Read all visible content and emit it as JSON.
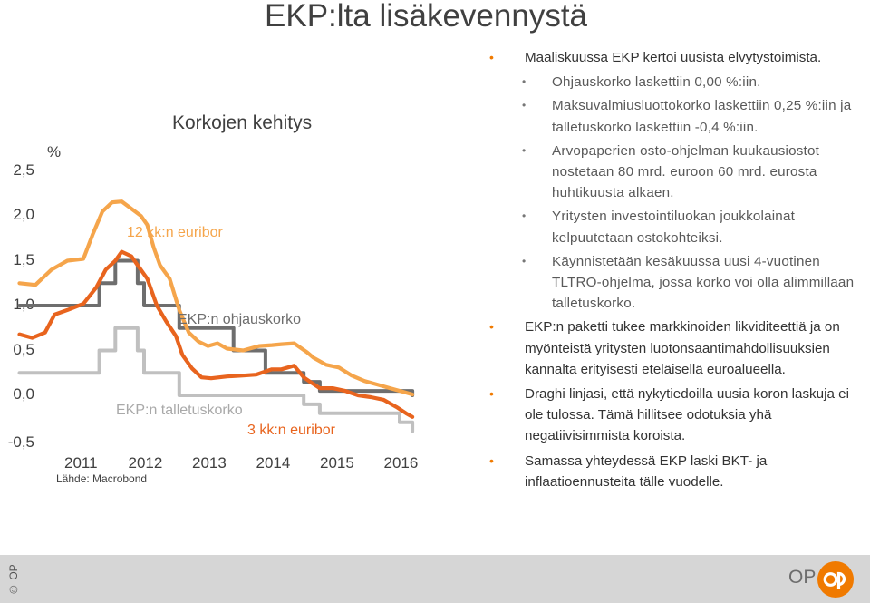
{
  "page": {
    "title": "EKP:lta lisäkevennystä"
  },
  "chart_data": {
    "type": "line",
    "title": "Korkojen kehitys",
    "ylabel": "%",
    "ylim": [
      -0.5,
      2.5
    ],
    "yticks": [
      "2,5",
      "2,0",
      "1,5",
      "1,0",
      "0,5",
      "0,0",
      "-0,5"
    ],
    "xticks": [
      "2011",
      "2012",
      "2013",
      "2014",
      "2015",
      "2016"
    ],
    "source": "Lähde: Macrobond",
    "series": [
      {
        "name": "12 kk:n euribor",
        "color": "#F5A54B",
        "points": [
          [
            2010.0,
            1.25
          ],
          [
            2010.25,
            1.23
          ],
          [
            2010.5,
            1.4
          ],
          [
            2010.75,
            1.5
          ],
          [
            2011.0,
            1.52
          ],
          [
            2011.15,
            1.8
          ],
          [
            2011.3,
            2.05
          ],
          [
            2011.45,
            2.15
          ],
          [
            2011.6,
            2.16
          ],
          [
            2011.75,
            2.08
          ],
          [
            2011.9,
            2.0
          ],
          [
            2012.0,
            1.9
          ],
          [
            2012.1,
            1.65
          ],
          [
            2012.2,
            1.45
          ],
          [
            2012.35,
            1.3
          ],
          [
            2012.5,
            0.95
          ],
          [
            2012.65,
            0.7
          ],
          [
            2012.8,
            0.6
          ],
          [
            2012.95,
            0.55
          ],
          [
            2013.1,
            0.58
          ],
          [
            2013.25,
            0.52
          ],
          [
            2013.5,
            0.5
          ],
          [
            2013.75,
            0.55
          ],
          [
            2013.95,
            0.56
          ],
          [
            2014.1,
            0.57
          ],
          [
            2014.3,
            0.58
          ],
          [
            2014.5,
            0.48
          ],
          [
            2014.6,
            0.42
          ],
          [
            2014.8,
            0.34
          ],
          [
            2015.0,
            0.31
          ],
          [
            2015.2,
            0.22
          ],
          [
            2015.4,
            0.16
          ],
          [
            2015.6,
            0.12
          ],
          [
            2015.8,
            0.08
          ],
          [
            2016.0,
            0.04
          ],
          [
            2016.15,
            0.01
          ]
        ]
      },
      {
        "name": "3 kk:n euribor",
        "color": "#E8641E",
        "points": [
          [
            2010.0,
            0.68
          ],
          [
            2010.2,
            0.64
          ],
          [
            2010.4,
            0.7
          ],
          [
            2010.55,
            0.9
          ],
          [
            2010.75,
            0.95
          ],
          [
            2011.0,
            1.02
          ],
          [
            2011.2,
            1.2
          ],
          [
            2011.35,
            1.4
          ],
          [
            2011.5,
            1.5
          ],
          [
            2011.6,
            1.6
          ],
          [
            2011.75,
            1.55
          ],
          [
            2011.85,
            1.45
          ],
          [
            2012.0,
            1.3
          ],
          [
            2012.15,
            1.0
          ],
          [
            2012.3,
            0.82
          ],
          [
            2012.45,
            0.66
          ],
          [
            2012.55,
            0.45
          ],
          [
            2012.7,
            0.3
          ],
          [
            2012.85,
            0.2
          ],
          [
            2013.0,
            0.19
          ],
          [
            2013.25,
            0.21
          ],
          [
            2013.5,
            0.22
          ],
          [
            2013.7,
            0.23
          ],
          [
            2013.95,
            0.29
          ],
          [
            2014.1,
            0.29
          ],
          [
            2014.3,
            0.33
          ],
          [
            2014.45,
            0.2
          ],
          [
            2014.55,
            0.15
          ],
          [
            2014.7,
            0.08
          ],
          [
            2014.9,
            0.08
          ],
          [
            2015.1,
            0.05
          ],
          [
            2015.3,
            0.0
          ],
          [
            2015.5,
            -0.02
          ],
          [
            2015.7,
            -0.05
          ],
          [
            2015.9,
            -0.13
          ],
          [
            2016.05,
            -0.2
          ],
          [
            2016.15,
            -0.24
          ]
        ]
      },
      {
        "name": "EKP:n ohjauskorko",
        "color": "#6e6e6e",
        "points": [
          [
            2010.0,
            1.0
          ],
          [
            2011.25,
            1.0
          ],
          [
            2011.25,
            1.25
          ],
          [
            2011.5,
            1.25
          ],
          [
            2011.5,
            1.5
          ],
          [
            2011.85,
            1.5
          ],
          [
            2011.85,
            1.25
          ],
          [
            2011.95,
            1.25
          ],
          [
            2011.95,
            1.0
          ],
          [
            2012.5,
            1.0
          ],
          [
            2012.5,
            0.75
          ],
          [
            2013.35,
            0.75
          ],
          [
            2013.35,
            0.5
          ],
          [
            2013.85,
            0.5
          ],
          [
            2013.85,
            0.25
          ],
          [
            2014.45,
            0.25
          ],
          [
            2014.45,
            0.15
          ],
          [
            2014.7,
            0.15
          ],
          [
            2014.7,
            0.05
          ],
          [
            2016.15,
            0.05
          ],
          [
            2016.15,
            0.0
          ]
        ]
      },
      {
        "name": "EKP:n talletuskorko",
        "color": "#c0c0c0",
        "points": [
          [
            2010.0,
            0.25
          ],
          [
            2011.25,
            0.25
          ],
          [
            2011.25,
            0.5
          ],
          [
            2011.5,
            0.5
          ],
          [
            2011.5,
            0.75
          ],
          [
            2011.85,
            0.75
          ],
          [
            2011.85,
            0.5
          ],
          [
            2011.95,
            0.5
          ],
          [
            2011.95,
            0.25
          ],
          [
            2012.5,
            0.25
          ],
          [
            2012.5,
            0.0
          ],
          [
            2014.45,
            0.0
          ],
          [
            2014.45,
            -0.1
          ],
          [
            2014.7,
            -0.1
          ],
          [
            2014.7,
            -0.2
          ],
          [
            2015.95,
            -0.2
          ],
          [
            2015.95,
            -0.3
          ],
          [
            2016.15,
            -0.3
          ],
          [
            2016.15,
            -0.4
          ]
        ]
      }
    ]
  },
  "bullets": [
    {
      "level": 1,
      "text": "Maaliskuussa EKP kertoi uusista elvytystoimista."
    },
    {
      "level": 2,
      "text": "Ohjauskorko laskettiin 0,00 %:iin."
    },
    {
      "level": 2,
      "text": "Maksuvalmiusluottokorko laskettiin 0,25 %:iin ja talletuskorko laskettiin -0,4 %:iin."
    },
    {
      "level": 2,
      "text": "Arvopaperien osto-ohjelman kuukausiostot nostetaan 80 mrd. euroon 60 mrd. eurosta huhtikuusta alkaen."
    },
    {
      "level": 2,
      "text": "Yritysten investointiluokan joukkolainat kelpuutetaan ostokohteiksi."
    },
    {
      "level": 2,
      "text": "Käynnistetään kesäkuussa uusi 4-vuotinen TLTRO-ohjelma, jossa korko voi olla alimmillaan talletuskorko."
    },
    {
      "level": 1,
      "text": "EKP:n paketti tukee markkinoiden likviditeettiä ja on myönteistä yritysten luotonsaantimahdollisuuksien kannalta erityisesti eteläisellä euroalueella."
    },
    {
      "level": 1,
      "text": "Draghi linjasi, että nykytiedoilla uusia koron laskuja ei ole tulossa. Tämä hillitsee odotuksia yhä negatiivisimmista koroista."
    },
    {
      "level": 1,
      "text": "Samassa yhteydessä EKP laski BKT- ja inflaatioennusteita tälle vuodelle."
    }
  ],
  "footer": {
    "copyright": "© OP",
    "brand": "OP"
  },
  "colors": {
    "bullet": "#F07A00",
    "logo": "#F07A00",
    "footer_bg": "#d6d6d6"
  }
}
